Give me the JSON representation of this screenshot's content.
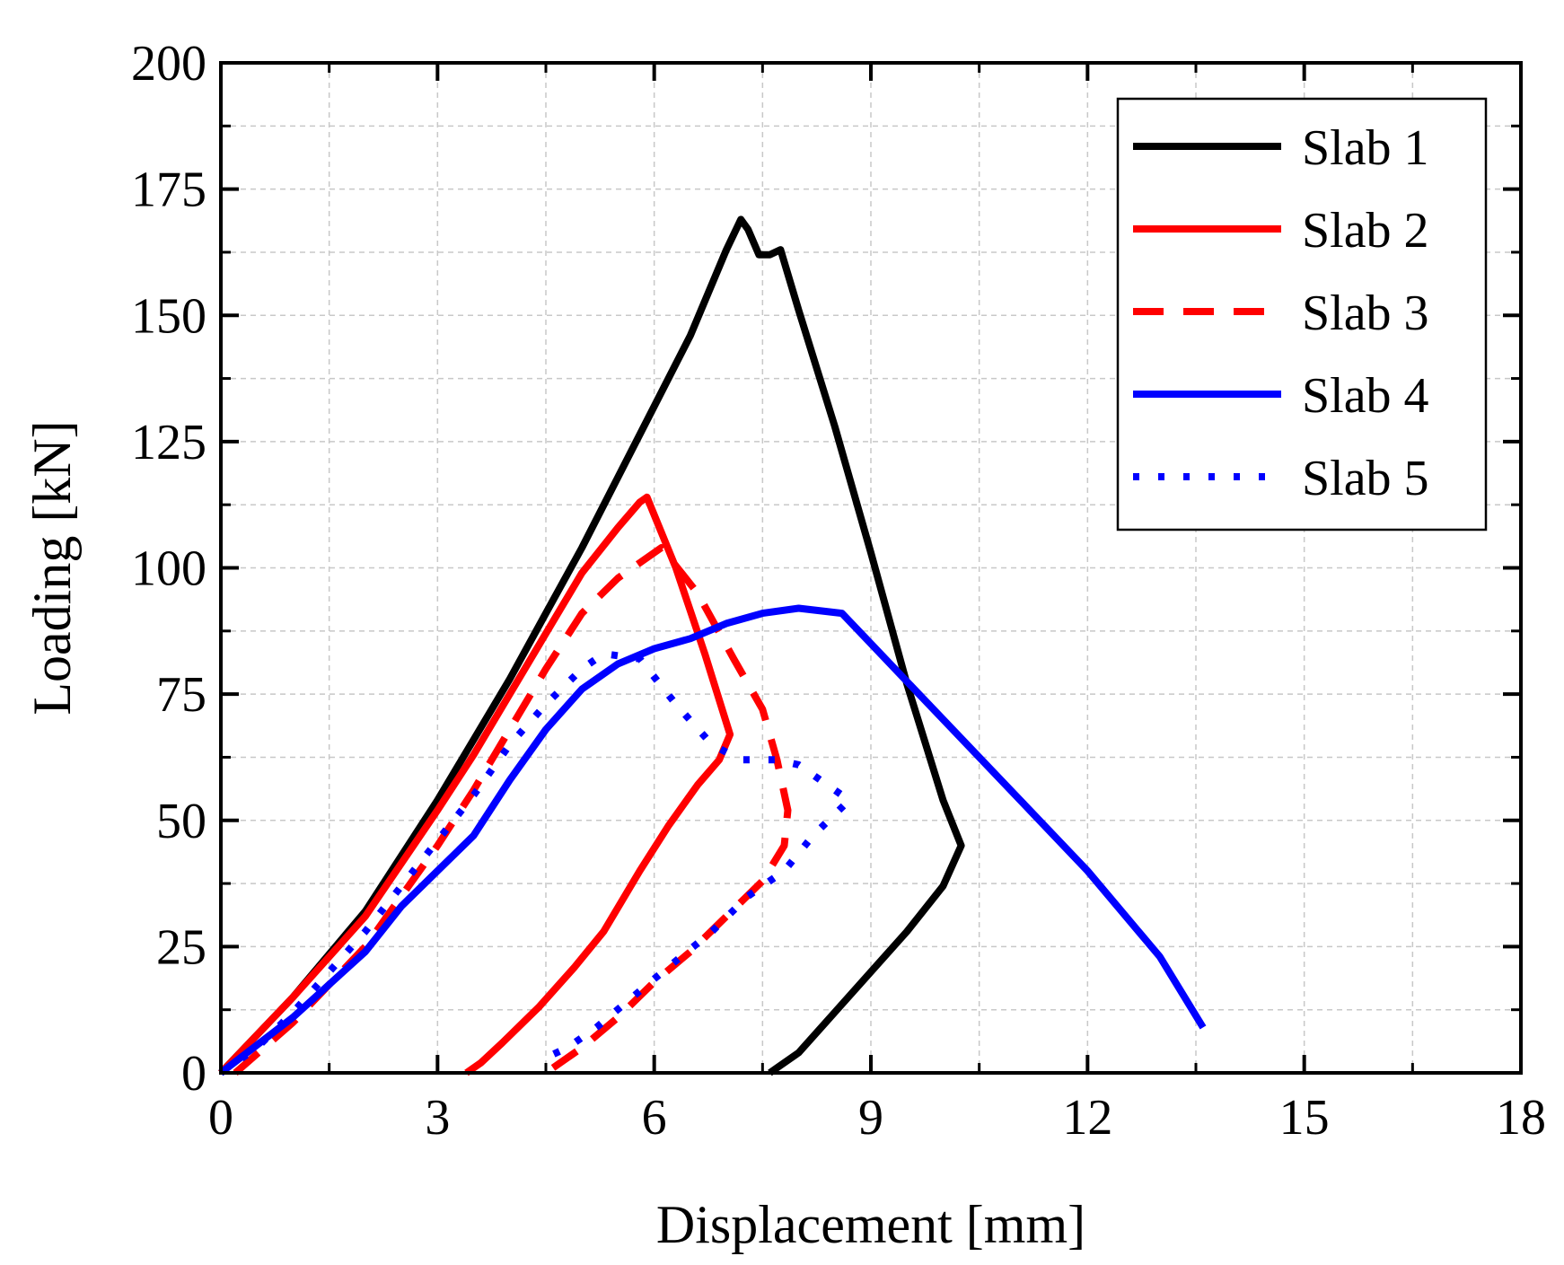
{
  "chart_data": {
    "type": "line",
    "title": "",
    "xlabel": "Displacement [mm]",
    "ylabel": "Loading [kN]",
    "xlim": [
      0,
      18
    ],
    "ylim": [
      0,
      200
    ],
    "xticks": [
      0,
      3,
      6,
      9,
      12,
      15,
      18
    ],
    "yticks": [
      0,
      25,
      50,
      75,
      100,
      125,
      150,
      175,
      200
    ],
    "xtick_labels": [
      "0",
      "3",
      "6",
      "9",
      "12",
      "15",
      "18"
    ],
    "ytick_labels": [
      "0",
      "25",
      "50",
      "75",
      "100",
      "125",
      "150",
      "175",
      "200"
    ],
    "grid": true,
    "legend_position": "top-right",
    "series": [
      {
        "name": "Slab 1",
        "color": "#000000",
        "dash": "solid",
        "points": [
          [
            0,
            0
          ],
          [
            1,
            15
          ],
          [
            2,
            32
          ],
          [
            3,
            54
          ],
          [
            3.5,
            66
          ],
          [
            4,
            78
          ],
          [
            4.5,
            91
          ],
          [
            5,
            104
          ],
          [
            5.5,
            118
          ],
          [
            6,
            132
          ],
          [
            6.5,
            146
          ],
          [
            7,
            163
          ],
          [
            7.2,
            169
          ],
          [
            7.3,
            167
          ],
          [
            7.45,
            162
          ],
          [
            7.6,
            162
          ],
          [
            7.75,
            163
          ],
          [
            8,
            151
          ],
          [
            8.5,
            128
          ],
          [
            9,
            103
          ],
          [
            9.5,
            77
          ],
          [
            10,
            54
          ],
          [
            10.25,
            45
          ],
          [
            10,
            37
          ],
          [
            9.5,
            28
          ],
          [
            9,
            20
          ],
          [
            8.5,
            12
          ],
          [
            8,
            4
          ],
          [
            7.7,
            1
          ],
          [
            7.6,
            0
          ]
        ]
      },
      {
        "name": "Slab 2",
        "color": "#ff0000",
        "dash": "solid",
        "points": [
          [
            0,
            0
          ],
          [
            1,
            15
          ],
          [
            2,
            31
          ],
          [
            3,
            52
          ],
          [
            3.5,
            63
          ],
          [
            4,
            75
          ],
          [
            4.5,
            87
          ],
          [
            5,
            99
          ],
          [
            5.5,
            108
          ],
          [
            5.8,
            113
          ],
          [
            5.9,
            114
          ],
          [
            6.3,
            100
          ],
          [
            6.7,
            83
          ],
          [
            7.05,
            67
          ],
          [
            6.9,
            62
          ],
          [
            6.6,
            57
          ],
          [
            6.2,
            49
          ],
          [
            5.8,
            40
          ],
          [
            5.3,
            28
          ],
          [
            4.9,
            21
          ],
          [
            4.4,
            13
          ],
          [
            3.9,
            6
          ],
          [
            3.6,
            2
          ],
          [
            3.4,
            0
          ]
        ]
      },
      {
        "name": "Slab 3",
        "color": "#ff0000",
        "dash": "dashed",
        "points": [
          [
            0.2,
            0
          ],
          [
            1,
            10
          ],
          [
            2,
            25
          ],
          [
            3,
            45
          ],
          [
            3.5,
            56
          ],
          [
            4,
            68
          ],
          [
            4.5,
            80
          ],
          [
            5,
            91
          ],
          [
            5.5,
            98
          ],
          [
            5.8,
            101
          ],
          [
            6.1,
            104
          ],
          [
            6.6,
            95
          ],
          [
            7.1,
            82
          ],
          [
            7.5,
            72
          ],
          [
            7.7,
            62
          ],
          [
            7.85,
            52
          ],
          [
            7.8,
            45
          ],
          [
            7.5,
            38
          ],
          [
            7,
            31
          ],
          [
            6.5,
            24
          ],
          [
            6,
            18
          ],
          [
            5.5,
            11
          ],
          [
            5,
            5
          ],
          [
            4.6,
            1
          ]
        ]
      },
      {
        "name": "Slab 4",
        "color": "#0000ff",
        "dash": "solid",
        "points": [
          [
            0,
            0
          ],
          [
            1,
            11
          ],
          [
            2,
            24
          ],
          [
            2.5,
            33
          ],
          [
            3,
            40
          ],
          [
            3.5,
            47
          ],
          [
            4,
            58
          ],
          [
            4.5,
            68
          ],
          [
            5,
            76
          ],
          [
            5.5,
            81
          ],
          [
            6,
            84
          ],
          [
            6.5,
            86
          ],
          [
            7,
            89
          ],
          [
            7.5,
            91
          ],
          [
            8,
            92
          ],
          [
            8.6,
            91
          ],
          [
            9,
            85
          ],
          [
            10,
            70
          ],
          [
            11,
            55
          ],
          [
            12,
            40
          ],
          [
            13,
            23
          ],
          [
            13.6,
            9
          ]
        ]
      },
      {
        "name": "Slab 5",
        "color": "#0000ff",
        "dash": "dotted",
        "points": [
          [
            0,
            0
          ],
          [
            0.5,
            5
          ],
          [
            1,
            12
          ],
          [
            1.5,
            20
          ],
          [
            2,
            28
          ],
          [
            2.5,
            37
          ],
          [
            3,
            46
          ],
          [
            3.5,
            55
          ],
          [
            4,
            65
          ],
          [
            4.5,
            73
          ],
          [
            5,
            80
          ],
          [
            5.3,
            83
          ],
          [
            5.8,
            82
          ],
          [
            6.3,
            73
          ],
          [
            6.8,
            65
          ],
          [
            7.2,
            62
          ],
          [
            7.7,
            62
          ],
          [
            8,
            61
          ],
          [
            8.4,
            57
          ],
          [
            8.7,
            54
          ],
          [
            8.2,
            47
          ],
          [
            7.8,
            40
          ],
          [
            7.3,
            35
          ],
          [
            6.8,
            28
          ],
          [
            6.2,
            21
          ],
          [
            5.7,
            15
          ],
          [
            5.2,
            9
          ],
          [
            4.8,
            5
          ],
          [
            4.5,
            3
          ]
        ]
      }
    ]
  }
}
